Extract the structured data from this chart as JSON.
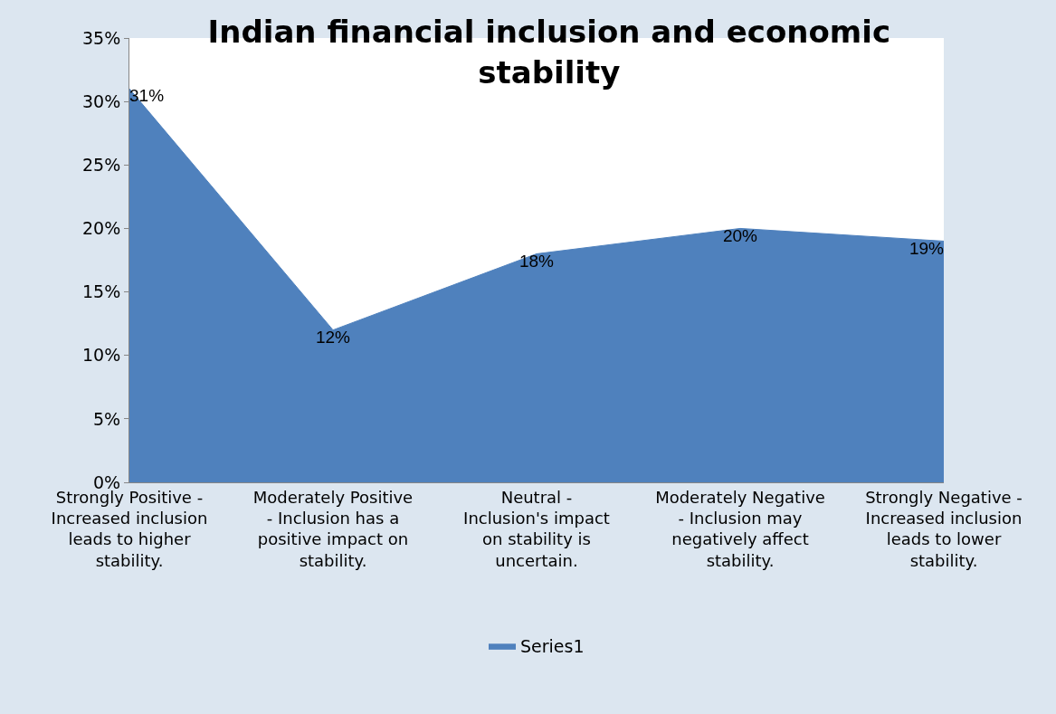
{
  "chart_data": {
    "type": "area",
    "title": "Indian financial inclusion and economic stability",
    "categories": [
      "Strongly Positive - Increased inclusion leads to higher stability.",
      "Moderately Positive - Inclusion has a positive impact on stability.",
      "Neutral - Inclusion's impact on stability is uncertain.",
      "Moderately Negative - Inclusion may negatively affect stability.",
      "Strongly Negative - Increased inclusion leads to lower stability."
    ],
    "series": [
      {
        "name": "Series1",
        "color": "#4f81bd",
        "values": [
          31,
          12,
          18,
          20,
          19
        ],
        "value_labels": [
          "31%",
          "12%",
          "18%",
          "20%",
          "19%"
        ]
      }
    ],
    "ylim": [
      0,
      35
    ],
    "yticks": [
      {
        "value": 0,
        "label": "0%"
      },
      {
        "value": 5,
        "label": "5%"
      },
      {
        "value": 10,
        "label": "10%"
      },
      {
        "value": 15,
        "label": "15%"
      },
      {
        "value": 20,
        "label": "20%"
      },
      {
        "value": 25,
        "label": "25%"
      },
      {
        "value": 30,
        "label": "30%"
      },
      {
        "value": 35,
        "label": "35%"
      }
    ],
    "grid": false,
    "legend": "bottom"
  }
}
